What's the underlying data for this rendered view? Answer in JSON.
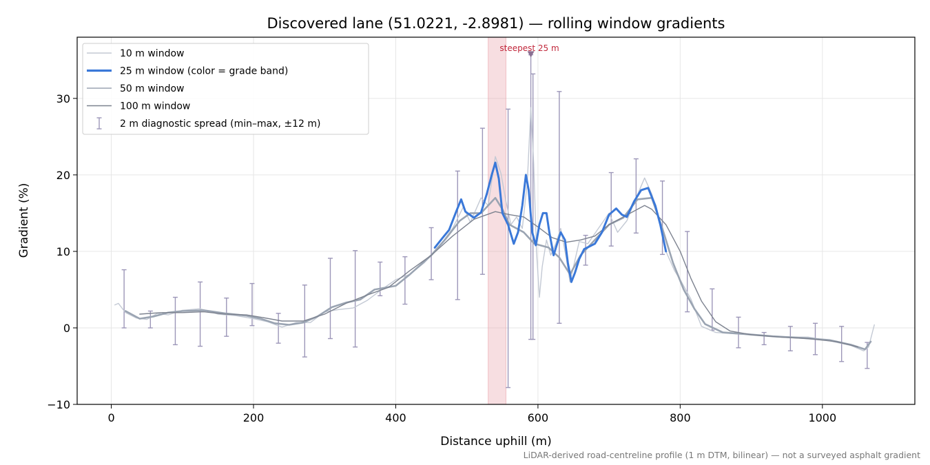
{
  "chart_data": {
    "type": "line",
    "title": "Discovered lane (51.0221, -2.8981) — rolling window gradients",
    "xlabel": "Distance uphill (m)",
    "ylabel": "Gradient (%)",
    "xlim": [
      -48,
      1130
    ],
    "ylim": [
      -10,
      38
    ],
    "xticks": [
      0,
      200,
      400,
      600,
      800,
      1000
    ],
    "xtick_labels": [
      "0",
      "200",
      "400",
      "600",
      "800",
      "1000"
    ],
    "yticks": [
      -10,
      0,
      10,
      20,
      30
    ],
    "ytick_labels": [
      "−10",
      "0",
      "10",
      "20",
      "30"
    ],
    "grid": true,
    "legend_position": "upper-left",
    "footnote": "LiDAR-derived road-centreline profile (1 m DTM, bilinear) — not a surveyed asphalt gradient",
    "steepest_span": {
      "x0": 530,
      "x1": 555,
      "label": "steepest 25 m",
      "marker_x": 590,
      "marker_y": 35.8
    },
    "series": [
      {
        "name": "10 m window",
        "color": "#c3c9d4",
        "points": [
          [
            5,
            3
          ],
          [
            10,
            3.2
          ],
          [
            20,
            2
          ],
          [
            35,
            1.3
          ],
          [
            50,
            1.1
          ],
          [
            65,
            1.9
          ],
          [
            80,
            1.7
          ],
          [
            100,
            2.3
          ],
          [
            125,
            2.5
          ],
          [
            150,
            1.8
          ],
          [
            175,
            1.6
          ],
          [
            200,
            1.2
          ],
          [
            220,
            0.8
          ],
          [
            240,
            0.1
          ],
          [
            260,
            0.7
          ],
          [
            280,
            0.7
          ],
          [
            300,
            2.1
          ],
          [
            320,
            2.4
          ],
          [
            340,
            2.6
          ],
          [
            360,
            3.6
          ],
          [
            380,
            5
          ],
          [
            400,
            6.3
          ],
          [
            420,
            7
          ],
          [
            440,
            8.5
          ],
          [
            460,
            10.5
          ],
          [
            480,
            13
          ],
          [
            495,
            15.8
          ],
          [
            505,
            13.8
          ],
          [
            520,
            17
          ],
          [
            530,
            16
          ],
          [
            540,
            22.4
          ],
          [
            548,
            20.2
          ],
          [
            555,
            16.5
          ],
          [
            562,
            13.5
          ],
          [
            570,
            14.5
          ],
          [
            578,
            13
          ],
          [
            585,
            19
          ],
          [
            590,
            28.8
          ],
          [
            594,
            21.5
          ],
          [
            598,
            10
          ],
          [
            602,
            4
          ],
          [
            606,
            8
          ],
          [
            612,
            11.5
          ],
          [
            618,
            9.5
          ],
          [
            625,
            11
          ],
          [
            632,
            13
          ],
          [
            640,
            9
          ],
          [
            645,
            6
          ],
          [
            650,
            8
          ],
          [
            658,
            11.3
          ],
          [
            670,
            11
          ],
          [
            685,
            13
          ],
          [
            700,
            15
          ],
          [
            712,
            12.5
          ],
          [
            725,
            14
          ],
          [
            738,
            17
          ],
          [
            750,
            19.6
          ],
          [
            760,
            17.5
          ],
          [
            770,
            14.5
          ],
          [
            780,
            10
          ],
          [
            792,
            7.5
          ],
          [
            800,
            6.3
          ],
          [
            815,
            3.8
          ],
          [
            830,
            0.2
          ],
          [
            850,
            -0.6
          ],
          [
            880,
            -0.8
          ],
          [
            920,
            -1
          ],
          [
            950,
            -1.2
          ],
          [
            980,
            -1.2
          ],
          [
            1010,
            -1.7
          ],
          [
            1040,
            -2.3
          ],
          [
            1058,
            -3
          ],
          [
            1065,
            -2.5
          ],
          [
            1073,
            0.4
          ]
        ]
      },
      {
        "name": "25 m window (color = grade band)",
        "color": "#3a78d8",
        "points": [
          [
            455,
            10.5
          ],
          [
            468,
            12
          ],
          [
            475,
            12.8
          ],
          [
            485,
            15.2
          ],
          [
            492,
            16.8
          ],
          [
            498,
            15.2
          ],
          [
            510,
            14.4
          ],
          [
            520,
            15.1
          ],
          [
            528,
            17.5
          ],
          [
            535,
            20
          ],
          [
            540,
            21.6
          ],
          [
            545,
            19.5
          ],
          [
            550,
            15
          ],
          [
            558,
            13.5
          ],
          [
            566,
            11
          ],
          [
            572,
            12.5
          ],
          [
            578,
            16
          ],
          [
            583,
            20
          ],
          [
            587,
            18
          ],
          [
            592,
            12.5
          ],
          [
            597,
            10.8
          ],
          [
            602,
            13.5
          ],
          [
            607,
            15
          ],
          [
            612,
            15
          ],
          [
            616,
            12.5
          ],
          [
            622,
            9.5
          ],
          [
            626,
            10.7
          ],
          [
            632,
            12.5
          ],
          [
            638,
            11.5
          ],
          [
            642,
            8.5
          ],
          [
            647,
            6
          ],
          [
            652,
            7.2
          ],
          [
            658,
            9
          ],
          [
            665,
            10.3
          ],
          [
            680,
            11
          ],
          [
            690,
            12.5
          ],
          [
            700,
            14.8
          ],
          [
            710,
            15.6
          ],
          [
            718,
            14.8
          ],
          [
            725,
            14.5
          ],
          [
            735,
            16.5
          ],
          [
            745,
            18
          ],
          [
            755,
            18.3
          ],
          [
            765,
            16
          ],
          [
            772,
            13.5
          ],
          [
            780,
            10
          ]
        ],
        "grade_band_highlight": {
          "color": "#e88a10",
          "x": [
            536,
            542
          ]
        }
      },
      {
        "name": "50 m window",
        "color": "#9aa4b2",
        "points": [
          [
            20,
            2.2
          ],
          [
            40,
            1.2
          ],
          [
            60,
            1.5
          ],
          [
            80,
            2
          ],
          [
            100,
            2.2
          ],
          [
            130,
            2.3
          ],
          [
            160,
            1.9
          ],
          [
            190,
            1.6
          ],
          [
            210,
            1.2
          ],
          [
            230,
            0.6
          ],
          [
            250,
            0.4
          ],
          [
            270,
            0.7
          ],
          [
            290,
            1.5
          ],
          [
            310,
            2.7
          ],
          [
            330,
            3.3
          ],
          [
            350,
            3.7
          ],
          [
            370,
            5
          ],
          [
            400,
            5.5
          ],
          [
            420,
            7
          ],
          [
            450,
            9.5
          ],
          [
            470,
            11.6
          ],
          [
            490,
            14
          ],
          [
            505,
            15
          ],
          [
            520,
            15
          ],
          [
            540,
            17
          ],
          [
            550,
            15.5
          ],
          [
            560,
            13.5
          ],
          [
            580,
            12.5
          ],
          [
            595,
            11
          ],
          [
            615,
            10.5
          ],
          [
            630,
            9.2
          ],
          [
            645,
            7
          ],
          [
            660,
            9.5
          ],
          [
            680,
            11.5
          ],
          [
            700,
            13.5
          ],
          [
            720,
            14.4
          ],
          [
            740,
            16.8
          ],
          [
            760,
            17
          ],
          [
            775,
            13
          ],
          [
            790,
            8.5
          ],
          [
            805,
            5
          ],
          [
            820,
            2.5
          ],
          [
            835,
            0.5
          ],
          [
            860,
            -0.6
          ],
          [
            890,
            -0.8
          ],
          [
            930,
            -1.1
          ],
          [
            970,
            -1.3
          ],
          [
            1010,
            -1.6
          ],
          [
            1040,
            -2.2
          ],
          [
            1060,
            -2.8
          ],
          [
            1068,
            -1.8
          ]
        ]
      },
      {
        "name": "100 m window",
        "color": "#7c828f",
        "points": [
          [
            40,
            1.8
          ],
          [
            70,
            2
          ],
          [
            100,
            2
          ],
          [
            130,
            2.1
          ],
          [
            160,
            1.8
          ],
          [
            190,
            1.7
          ],
          [
            210,
            1.4
          ],
          [
            240,
            0.9
          ],
          [
            270,
            0.9
          ],
          [
            300,
            1.8
          ],
          [
            330,
            3.2
          ],
          [
            360,
            4.3
          ],
          [
            390,
            5.3
          ],
          [
            420,
            7.5
          ],
          [
            450,
            9.5
          ],
          [
            480,
            12
          ],
          [
            510,
            14.2
          ],
          [
            540,
            15.2
          ],
          [
            560,
            14.8
          ],
          [
            580,
            14.5
          ],
          [
            600,
            13.2
          ],
          [
            620,
            11.8
          ],
          [
            640,
            11.2
          ],
          [
            660,
            11.5
          ],
          [
            680,
            12
          ],
          [
            700,
            13.5
          ],
          [
            720,
            14.5
          ],
          [
            740,
            15.5
          ],
          [
            750,
            16
          ],
          [
            760,
            15.5
          ],
          [
            780,
            13.5
          ],
          [
            800,
            10
          ],
          [
            815,
            6.5
          ],
          [
            830,
            3.5
          ],
          [
            850,
            0.8
          ],
          [
            870,
            -0.4
          ],
          [
            900,
            -0.9
          ],
          [
            940,
            -1.2
          ],
          [
            980,
            -1.4
          ],
          [
            1020,
            -1.8
          ],
          [
            1050,
            -2.5
          ]
        ]
      }
    ],
    "errorbars": {
      "name": "2 m diagnostic spread (min–max, ±12 m)",
      "color": "#9c96b8",
      "items": [
        [
          18,
          0,
          7.6
        ],
        [
          55,
          0,
          2.2
        ],
        [
          90,
          -2.2,
          4
        ],
        [
          125,
          -2.4,
          6
        ],
        [
          162,
          -1.1,
          3.9
        ],
        [
          198,
          0.3,
          5.8
        ],
        [
          235,
          -2,
          1.9
        ],
        [
          272,
          -3.8,
          5.6
        ],
        [
          308,
          -1.4,
          9.1
        ],
        [
          343,
          -2.5,
          10.1
        ],
        [
          378,
          4.2,
          8.6
        ],
        [
          413,
          3.1,
          9.3
        ],
        [
          450,
          6.3,
          13.1
        ],
        [
          487,
          3.7,
          20.5
        ],
        [
          522,
          7,
          26.1
        ],
        [
          558,
          -7.8,
          28.6
        ],
        [
          590,
          -1.5,
          35.7
        ],
        [
          593,
          -1.5,
          33.2
        ],
        [
          630,
          0.6,
          30.9
        ],
        [
          667,
          8.2,
          12.1
        ],
        [
          703,
          10.7,
          20.3
        ],
        [
          738,
          12.4,
          22.1
        ],
        [
          775,
          9.6,
          19.2
        ],
        [
          810,
          2.1,
          12.6
        ],
        [
          845,
          -0.3,
          5.1
        ],
        [
          882,
          -2.6,
          1.4
        ],
        [
          918,
          -2.2,
          -0.6
        ],
        [
          955,
          -3,
          0.2
        ],
        [
          990,
          -3.5,
          0.6
        ],
        [
          1027,
          -4.4,
          0.2
        ],
        [
          1063,
          -5.3,
          -1.9
        ]
      ]
    }
  }
}
